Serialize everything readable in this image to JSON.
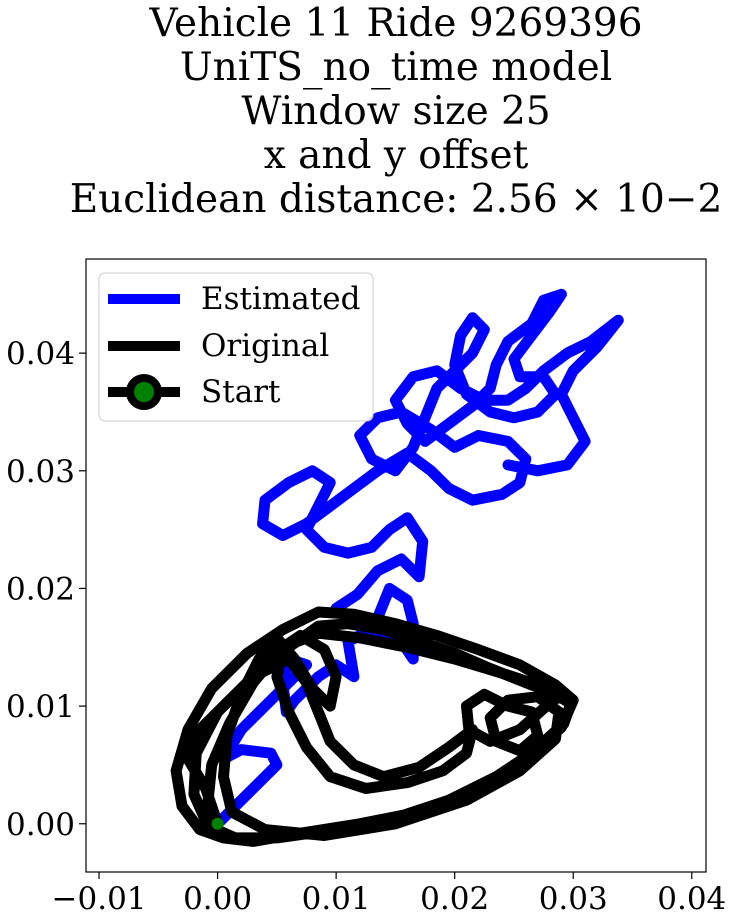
{
  "chart_data": {
    "type": "line",
    "title_lines": [
      "Vehicle 11 Ride 9269396",
      "UniTS_no_time model",
      "Window size 25",
      "x and y offset",
      "Euclidean distance: 2.56 × 10−2"
    ],
    "xlabel": "",
    "ylabel": "",
    "xlim": [
      -0.0111,
      0.0412
    ],
    "ylim": [
      -0.0041,
      0.048
    ],
    "xticks": [
      -0.01,
      0.0,
      0.01,
      0.02,
      0.03,
      0.04
    ],
    "xtick_labels": [
      "−0.01",
      "0.00",
      "0.01",
      "0.02",
      "0.03",
      "0.04"
    ],
    "yticks": [
      0.0,
      0.01,
      0.02,
      0.03,
      0.04
    ],
    "ytick_labels": [
      "0.00",
      "0.01",
      "0.02",
      "0.03",
      "0.04"
    ],
    "grid": false,
    "legend_position": "top-left",
    "series": [
      {
        "name": "Estimated",
        "color": "#0000ff",
        "points": [
          [
            0.0,
            0.0
          ],
          [
            0.002,
            0.002
          ],
          [
            0.004,
            0.004
          ],
          [
            0.005,
            0.005
          ],
          [
            0.0045,
            0.006
          ],
          [
            0.002,
            0.0063
          ],
          [
            0.0005,
            0.0055
          ],
          [
            0.002,
            0.008
          ],
          [
            0.004,
            0.01
          ],
          [
            0.006,
            0.012
          ],
          [
            0.0075,
            0.0135
          ],
          [
            0.006,
            0.014
          ],
          [
            0.0055,
            0.012
          ],
          [
            0.0058,
            0.0095
          ],
          [
            0.0065,
            0.0105
          ],
          [
            0.0085,
            0.0125
          ],
          [
            0.01,
            0.0135
          ],
          [
            0.0115,
            0.0125
          ],
          [
            0.011,
            0.0155
          ],
          [
            0.013,
            0.0165
          ],
          [
            0.0155,
            0.0155
          ],
          [
            0.0165,
            0.014
          ],
          [
            0.0165,
            0.017
          ],
          [
            0.016,
            0.019
          ],
          [
            0.0145,
            0.02
          ],
          [
            0.0135,
            0.0175
          ],
          [
            0.0115,
            0.017
          ],
          [
            0.01,
            0.0183
          ],
          [
            0.0118,
            0.0195
          ],
          [
            0.0135,
            0.0215
          ],
          [
            0.0155,
            0.0225
          ],
          [
            0.017,
            0.021
          ],
          [
            0.0173,
            0.024
          ],
          [
            0.016,
            0.026
          ],
          [
            0.0145,
            0.025
          ],
          [
            0.013,
            0.0235
          ],
          [
            0.011,
            0.023
          ],
          [
            0.009,
            0.0235
          ],
          [
            0.0075,
            0.025
          ],
          [
            0.0085,
            0.027
          ],
          [
            0.0095,
            0.029
          ],
          [
            0.008,
            0.03
          ],
          [
            0.006,
            0.029
          ],
          [
            0.004,
            0.0275
          ],
          [
            0.0038,
            0.0255
          ],
          [
            0.0055,
            0.0245
          ],
          [
            0.0075,
            0.0255
          ],
          [
            0.0095,
            0.027
          ],
          [
            0.0115,
            0.0285
          ],
          [
            0.0135,
            0.03
          ],
          [
            0.016,
            0.0315
          ],
          [
            0.018,
            0.03
          ],
          [
            0.0195,
            0.0285
          ],
          [
            0.0215,
            0.0275
          ],
          [
            0.024,
            0.028
          ],
          [
            0.0255,
            0.029
          ],
          [
            0.026,
            0.031
          ],
          [
            0.0245,
            0.0325
          ],
          [
            0.022,
            0.033
          ],
          [
            0.02,
            0.032
          ],
          [
            0.018,
            0.0335
          ],
          [
            0.0155,
            0.035
          ],
          [
            0.0135,
            0.0345
          ],
          [
            0.012,
            0.033
          ],
          [
            0.013,
            0.031
          ],
          [
            0.015,
            0.03
          ],
          [
            0.0165,
            0.032
          ],
          [
            0.0175,
            0.0345
          ],
          [
            0.0185,
            0.037
          ],
          [
            0.02,
            0.0385
          ],
          [
            0.0215,
            0.04
          ],
          [
            0.0225,
            0.042
          ],
          [
            0.0215,
            0.043
          ],
          [
            0.0205,
            0.0415
          ],
          [
            0.02,
            0.039
          ],
          [
            0.021,
            0.0365
          ],
          [
            0.023,
            0.035
          ],
          [
            0.025,
            0.0345
          ],
          [
            0.027,
            0.035
          ],
          [
            0.0285,
            0.0365
          ],
          [
            0.0275,
            0.038
          ],
          [
            0.0255,
            0.038
          ],
          [
            0.025,
            0.0395
          ],
          [
            0.0265,
            0.0415
          ],
          [
            0.028,
            0.0435
          ],
          [
            0.029,
            0.045
          ],
          [
            0.0275,
            0.0445
          ],
          [
            0.0265,
            0.0425
          ],
          [
            0.0245,
            0.041
          ],
          [
            0.0235,
            0.039
          ],
          [
            0.023,
            0.037
          ],
          [
            0.0215,
            0.0355
          ],
          [
            0.0195,
            0.034
          ],
          [
            0.0175,
            0.0325
          ],
          [
            0.016,
            0.034
          ],
          [
            0.015,
            0.036
          ],
          [
            0.0165,
            0.038
          ],
          [
            0.0185,
            0.0385
          ],
          [
            0.0205,
            0.037
          ],
          [
            0.0225,
            0.036
          ],
          [
            0.0245,
            0.036
          ],
          [
            0.026,
            0.037
          ],
          [
            0.0275,
            0.0385
          ],
          [
            0.0295,
            0.04
          ],
          [
            0.0315,
            0.041
          ],
          [
            0.0338,
            0.0428
          ],
          [
            0.032,
            0.0405
          ],
          [
            0.03,
            0.0385
          ],
          [
            0.029,
            0.0365
          ],
          [
            0.03,
            0.0345
          ],
          [
            0.031,
            0.0325
          ],
          [
            0.0295,
            0.0305
          ],
          [
            0.027,
            0.03
          ],
          [
            0.0245,
            0.0305
          ]
        ]
      },
      {
        "name": "Original",
        "color": "#000000",
        "points": [
          [
            0.0,
            0.0
          ],
          [
            -0.001,
            0.003
          ],
          [
            -0.0025,
            0.0055
          ],
          [
            -0.0015,
            0.008
          ],
          [
            0.001,
            0.0105
          ],
          [
            0.0035,
            0.013
          ],
          [
            0.006,
            0.015
          ],
          [
            0.0085,
            0.0168
          ],
          [
            0.011,
            0.017
          ],
          [
            0.014,
            0.0165
          ],
          [
            0.017,
            0.0155
          ],
          [
            0.02,
            0.0145
          ],
          [
            0.023,
            0.0132
          ],
          [
            0.026,
            0.012
          ],
          [
            0.0285,
            0.011
          ],
          [
            0.0298,
            0.0102
          ],
          [
            0.0292,
            0.0085
          ],
          [
            0.027,
            0.0065
          ],
          [
            0.0245,
            0.0045
          ],
          [
            0.021,
            0.0025
          ],
          [
            0.017,
            0.001
          ],
          [
            0.012,
            0.0
          ],
          [
            0.007,
            -0.0008
          ],
          [
            0.003,
            -0.0015
          ],
          [
            0.0005,
            -0.0012
          ],
          [
            -0.0015,
            -0.0005
          ],
          [
            -0.003,
            0.0015
          ],
          [
            -0.0035,
            0.0045
          ],
          [
            -0.0025,
            0.008
          ],
          [
            -0.0005,
            0.0115
          ],
          [
            0.0025,
            0.0145
          ],
          [
            0.0055,
            0.0165
          ],
          [
            0.0085,
            0.018
          ],
          [
            0.0115,
            0.0178
          ],
          [
            0.015,
            0.017
          ],
          [
            0.0185,
            0.016
          ],
          [
            0.022,
            0.0148
          ],
          [
            0.0255,
            0.0135
          ],
          [
            0.0285,
            0.0118
          ],
          [
            0.03,
            0.0105
          ],
          [
            0.029,
            0.0082
          ],
          [
            0.0265,
            0.006
          ],
          [
            0.0235,
            0.004
          ],
          [
            0.0195,
            0.002
          ],
          [
            0.015,
            0.0005
          ],
          [
            0.01,
            -0.0005
          ],
          [
            0.005,
            -0.0012
          ],
          [
            0.0015,
            -0.0012
          ],
          [
            -0.0008,
            -0.0002
          ],
          [
            -0.002,
            0.0025
          ],
          [
            -0.0018,
            0.006
          ],
          [
            0.0,
            0.0095
          ],
          [
            0.003,
            0.0125
          ],
          [
            0.006,
            0.014
          ],
          [
            0.0075,
            0.012
          ],
          [
            0.0085,
            0.0095
          ],
          [
            0.0095,
            0.007
          ],
          [
            0.0115,
            0.005
          ],
          [
            0.014,
            0.004
          ],
          [
            0.017,
            0.0048
          ],
          [
            0.0195,
            0.0065
          ],
          [
            0.0215,
            0.008
          ],
          [
            0.021,
            0.006
          ],
          [
            0.019,
            0.0045
          ],
          [
            0.016,
            0.0035
          ],
          [
            0.0125,
            0.003
          ],
          [
            0.0095,
            0.004
          ],
          [
            0.0075,
            0.0065
          ],
          [
            0.006,
            0.0095
          ],
          [
            0.005,
            0.0125
          ],
          [
            0.0055,
            0.015
          ],
          [
            0.007,
            0.016
          ],
          [
            0.009,
            0.0148
          ],
          [
            0.01,
            0.0125
          ],
          [
            0.0095,
            0.01
          ],
          [
            0.008,
            0.0115
          ],
          [
            0.0065,
            0.014
          ],
          [
            0.005,
            0.0158
          ],
          [
            0.0035,
            0.014
          ],
          [
            0.002,
            0.011
          ],
          [
            0.0008,
            0.0075
          ],
          [
            0.0005,
            0.004
          ],
          [
            0.0012,
            0.001
          ],
          [
            0.004,
            -0.0005
          ],
          [
            0.009,
            -0.001
          ],
          [
            0.015,
            0.0
          ],
          [
            0.021,
            0.002
          ],
          [
            0.0255,
            0.0045
          ],
          [
            0.0285,
            0.0072
          ],
          [
            0.0288,
            0.0095
          ],
          [
            0.027,
            0.0108
          ],
          [
            0.0245,
            0.0105
          ],
          [
            0.023,
            0.009
          ],
          [
            0.0235,
            0.007
          ],
          [
            0.0255,
            0.0062
          ],
          [
            0.027,
            0.0075
          ],
          [
            0.0265,
            0.0095
          ],
          [
            0.0245,
            0.01
          ],
          [
            0.0225,
            0.011
          ],
          [
            0.021,
            0.01
          ],
          [
            0.0212,
            0.008
          ],
          [
            0.023,
            0.007
          ],
          [
            0.0255,
            0.008
          ],
          [
            0.0275,
            0.0098
          ],
          [
            0.029,
            0.011
          ],
          [
            0.027,
            0.0118
          ],
          [
            0.024,
            0.0128
          ],
          [
            0.02,
            0.014
          ],
          [
            0.016,
            0.015
          ],
          [
            0.012,
            0.0158
          ],
          [
            0.0085,
            0.0162
          ],
          [
            0.0055,
            0.015
          ],
          [
            0.003,
            0.012
          ],
          [
            0.001,
            0.0085
          ],
          [
            -0.0005,
            0.005
          ],
          [
            -0.0008,
            0.002
          ],
          [
            0.0,
            0.0
          ]
        ]
      }
    ],
    "start": {
      "name": "Start",
      "x": 0.0,
      "y": 0.0,
      "marker_color": "#008000",
      "edge_color": "#000000"
    }
  }
}
